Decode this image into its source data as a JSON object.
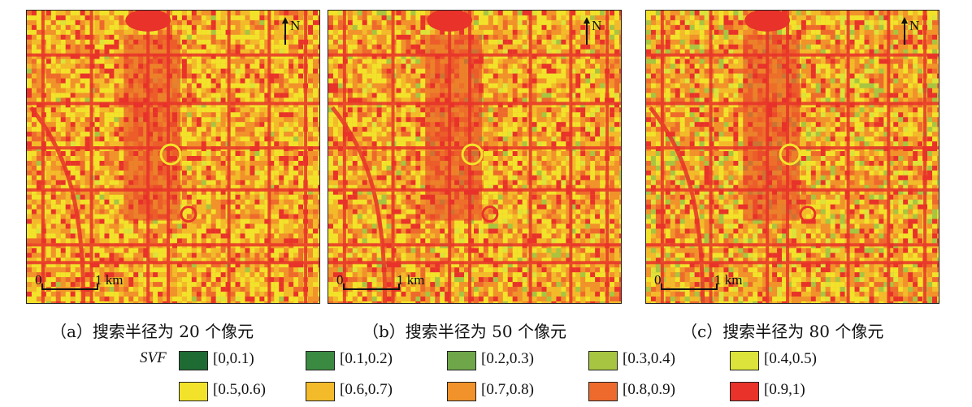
{
  "panels": [
    {
      "north_label": "N",
      "scale_zero": "0",
      "scale_unit": "1 km",
      "caption": "（a）搜索半径为 20 个像元",
      "green_share": 0.02
    },
    {
      "north_label": "N",
      "scale_zero": "0",
      "scale_unit": "1 km",
      "caption": "（b）搜索半径为 50 个像元",
      "green_share": 0.08
    },
    {
      "north_label": "N",
      "scale_zero": "0",
      "scale_unit": "1 km",
      "caption": "（c）搜索半径为 80 个像元",
      "green_share": 0.14
    }
  ],
  "legend": {
    "label": "SVF",
    "items": [
      {
        "range": "[0,0.1)",
        "color": "#1e6b33"
      },
      {
        "range": "[0.1,0.2)",
        "color": "#3b8a42"
      },
      {
        "range": "[0.2,0.3)",
        "color": "#6fa64a"
      },
      {
        "range": "[0.3,0.4)",
        "color": "#a7c540"
      },
      {
        "range": "[0.4,0.5)",
        "color": "#dce33a"
      },
      {
        "range": "[0.5,0.6)",
        "color": "#f2e32a"
      },
      {
        "range": "[0.6,0.7)",
        "color": "#f3bb2a"
      },
      {
        "range": "[0.7,0.8)",
        "color": "#f1922a"
      },
      {
        "range": "[0.8,0.9)",
        "color": "#ee6a2c"
      },
      {
        "range": "[0.9,1)",
        "color": "#e8322a"
      }
    ]
  }
}
